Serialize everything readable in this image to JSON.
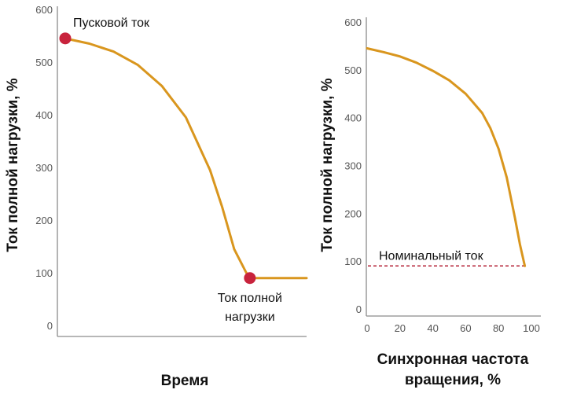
{
  "colors": {
    "curve": "#d9961e",
    "marker": "#c8233c",
    "dashed": "#b42035",
    "axis": "#8c8c8c"
  },
  "chart_data": [
    {
      "type": "line",
      "xlabel": "Время",
      "ylabel": "Ток полной нагрузки, %",
      "yticks": [
        "0",
        "100",
        "200",
        "300",
        "400",
        "500",
        "600"
      ],
      "ylim": [
        0,
        600
      ],
      "xlim": [
        0,
        100
      ],
      "series": [
        {
          "x": [
            0,
            10,
            20,
            30,
            40,
            50,
            60,
            65,
            70,
            75,
            76.5,
            80,
            90,
            100
          ],
          "y": [
            545,
            535,
            520,
            495,
            455,
            395,
            295,
            225,
            145,
            100,
            90,
            90,
            90,
            90
          ]
        }
      ],
      "markers": [
        {
          "x": 0,
          "y": 545,
          "label": "Пусковой ток"
        },
        {
          "x": 76.5,
          "y": 90,
          "label_lines": [
            "Ток полной",
            "нагрузки"
          ]
        }
      ]
    },
    {
      "type": "line",
      "xlabel_lines": [
        "Синхронная частота",
        "вращения, %"
      ],
      "ylabel": "Ток полной нагрузки, %",
      "yticks": [
        "0",
        "100",
        "200",
        "300",
        "400",
        "500",
        "600"
      ],
      "xticks": [
        "0",
        "20",
        "40",
        "60",
        "80",
        "100"
      ],
      "ylim": [
        0,
        600
      ],
      "xlim": [
        0,
        100
      ],
      "series": [
        {
          "x": [
            0,
            10,
            20,
            30,
            40,
            50,
            60,
            70,
            75,
            80,
            85,
            90,
            93,
            96
          ],
          "y": [
            545,
            537,
            528,
            515,
            498,
            478,
            450,
            410,
            378,
            335,
            275,
            190,
            135,
            90
          ]
        }
      ],
      "reference_line": {
        "y": 90,
        "label": "Номинальный ток"
      }
    }
  ]
}
